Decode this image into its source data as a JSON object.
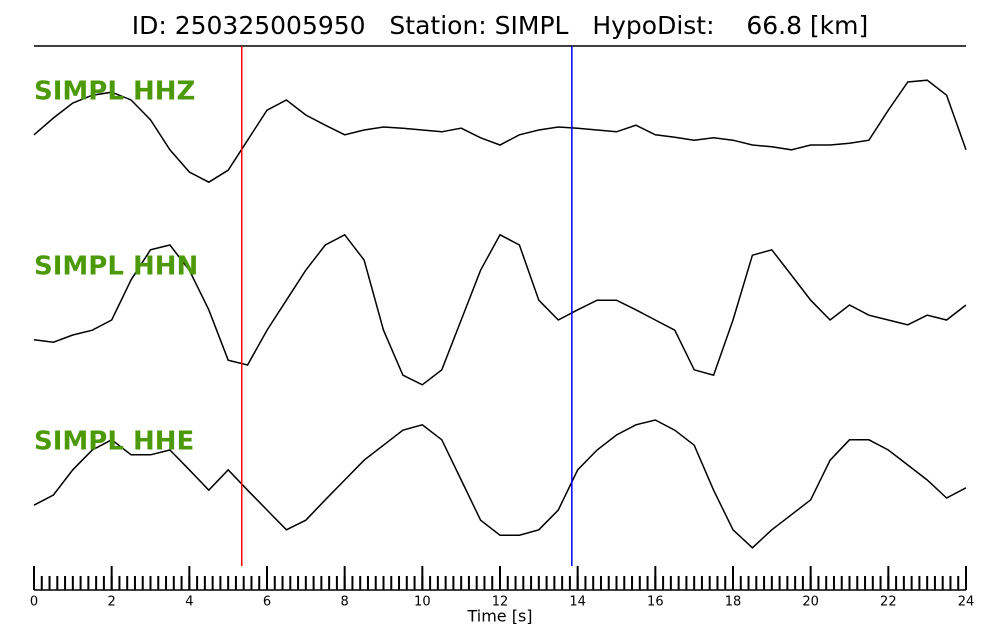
{
  "chart_data": {
    "type": "line",
    "title": "ID: 250325005950   Station: SIMPL   HypoDist:    66.8 [km]",
    "xlabel": "Time [s]",
    "xlim": [
      0,
      24
    ],
    "xticks": [
      0,
      2,
      4,
      6,
      8,
      10,
      12,
      14,
      16,
      18,
      20,
      22,
      24
    ],
    "xminor_step": 0.2,
    "label_color": "#4c9a0a",
    "x": [
      0,
      0.5,
      1,
      1.5,
      2,
      2.5,
      3,
      3.5,
      4,
      4.5,
      5,
      5.5,
      6,
      6.5,
      7,
      7.5,
      8,
      8.5,
      9,
      9.5,
      10,
      10.5,
      11,
      11.5,
      12,
      12.5,
      13,
      13.5,
      14,
      14.5,
      15,
      15.5,
      16,
      16.5,
      17,
      17.5,
      18,
      18.5,
      19,
      19.5,
      20,
      20.5,
      21,
      21.5,
      22,
      22.5,
      23,
      23.5,
      24
    ],
    "series": [
      {
        "name": "SIMPL HHZ",
        "color": "#000000",
        "values": [
          -0.08,
          0.2,
          0.45,
          0.58,
          0.63,
          0.5,
          0.17,
          -0.33,
          -0.7,
          -0.87,
          -0.67,
          -0.17,
          0.33,
          0.5,
          0.25,
          0.08,
          -0.08,
          0,
          0.05,
          0.03,
          0,
          -0.03,
          0.03,
          -0.13,
          -0.25,
          -0.08,
          0,
          0.05,
          0.03,
          0,
          -0.03,
          0.08,
          -0.08,
          -0.12,
          -0.17,
          -0.13,
          -0.17,
          -0.25,
          -0.28,
          -0.33,
          -0.25,
          -0.25,
          -0.22,
          -0.17,
          0.33,
          0.8,
          0.83,
          0.58,
          -0.33
        ]
      },
      {
        "name": "SIMPL HHN",
        "color": "#000000",
        "values": [
          -0.58,
          -0.62,
          -0.5,
          -0.42,
          -0.25,
          0.42,
          0.92,
          1,
          0.58,
          -0.08,
          -0.92,
          -1,
          -0.42,
          0.08,
          0.58,
          1,
          1.17,
          0.75,
          -0.42,
          -1.17,
          -1.33,
          -1.08,
          -0.25,
          0.58,
          1.17,
          1,
          0.08,
          -0.25,
          -0.08,
          0.08,
          0.08,
          -0.08,
          -0.25,
          -0.42,
          -1.08,
          -1.17,
          -0.25,
          0.83,
          0.92,
          0.5,
          0.08,
          -0.25,
          0,
          -0.17,
          -0.25,
          -0.33,
          -0.17,
          -0.25,
          0
        ]
      },
      {
        "name": "SIMPL HHE",
        "color": "#000000",
        "values": [
          -0.42,
          -0.25,
          0.17,
          0.5,
          0.67,
          0.42,
          0.42,
          0.5,
          0.17,
          -0.17,
          0.17,
          -0.17,
          -0.5,
          -0.83,
          -0.67,
          -0.33,
          0,
          0.33,
          0.58,
          0.83,
          0.92,
          0.67,
          0,
          -0.67,
          -0.92,
          -0.92,
          -0.83,
          -0.5,
          0.17,
          0.5,
          0.75,
          0.92,
          1,
          0.83,
          0.58,
          -0.17,
          -0.83,
          -1.13,
          -0.83,
          -0.58,
          -0.33,
          0.33,
          0.67,
          0.67,
          0.5,
          0.25,
          0,
          -0.3,
          -0.13
        ]
      }
    ],
    "markers": [
      {
        "value": 5.35,
        "color": "#ff0000"
      },
      {
        "value": 13.85,
        "color": "#0000ff"
      }
    ]
  }
}
